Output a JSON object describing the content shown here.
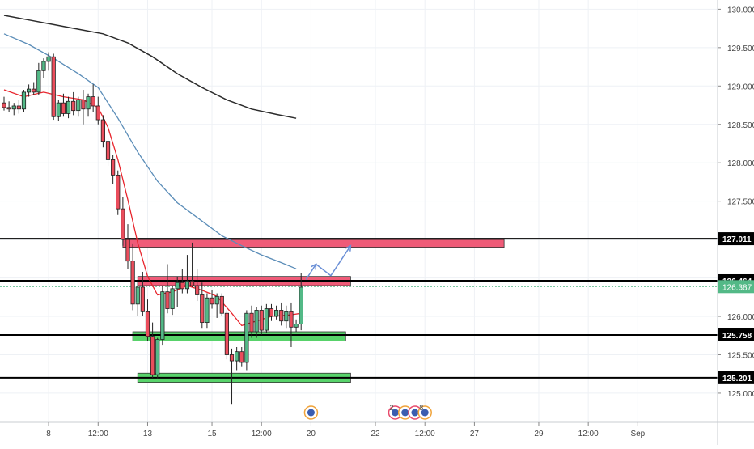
{
  "chart_data": {
    "type": "candlestick",
    "symbol_hint": "",
    "colors": {
      "up": "#53b987",
      "down": "#eb4d5c",
      "ema_fast": "#e8262e",
      "ema_mid": "#5b8db8",
      "ema_slow": "#2b2b2b",
      "resistance_zone": "#ef5b78",
      "support_zone": "#58d36b",
      "projection": "#6a8fd6",
      "level_line": "#000000",
      "last_price_bg": "#53b987",
      "grid": "#eef1f5"
    },
    "ylim": [
      124.62,
      130.12
    ],
    "y_ticks": [
      "130.000",
      "129.500",
      "129.000",
      "128.500",
      "128.000",
      "127.500",
      "127.000",
      "126.500",
      "126.000",
      "125.500",
      "125.000"
    ],
    "y_tick_values": [
      130.0,
      129.5,
      129.0,
      128.5,
      128.0,
      127.5,
      127.0,
      126.5,
      126.0,
      125.5,
      125.0
    ],
    "x_ticks": [
      "8",
      "12:00",
      "13",
      "15",
      "12:00",
      "20",
      "22",
      "12:00",
      "27",
      "29",
      "12:00",
      "Sep"
    ],
    "x_tick_index": [
      9,
      19,
      29,
      42,
      52,
      62,
      75,
      85,
      95,
      108,
      118,
      128
    ],
    "price_levels": [
      {
        "label": "127.011",
        "value": 127.011
      },
      {
        "label": "126.464",
        "value": 126.464
      },
      {
        "label": "125.758",
        "value": 125.758
      },
      {
        "label": "125.201",
        "value": 125.201
      }
    ],
    "last_price": {
      "label": "126.387",
      "value": 126.387
    },
    "zones": [
      {
        "kind": "resistance",
        "top": 127.0,
        "bottom": 126.9,
        "start": 24,
        "end": 101
      },
      {
        "kind": "resistance",
        "top": 126.52,
        "bottom": 126.4,
        "start": 27,
        "end": 70
      },
      {
        "kind": "support",
        "top": 125.8,
        "bottom": 125.68,
        "start": 26,
        "end": 69
      },
      {
        "kind": "support",
        "top": 125.26,
        "bottom": 125.14,
        "start": 27,
        "end": 70
      }
    ],
    "projection_path": [
      [
        61,
        126.48
      ],
      [
        63,
        126.68
      ],
      [
        66,
        126.53
      ],
      [
        70,
        126.92
      ]
    ],
    "candles": [
      [
        128.78,
        128.86,
        128.68,
        128.72
      ],
      [
        128.72,
        128.8,
        128.66,
        128.7
      ],
      [
        128.7,
        128.78,
        128.62,
        128.74
      ],
      [
        128.74,
        128.82,
        128.64,
        128.7
      ],
      [
        128.7,
        128.95,
        128.66,
        128.92
      ],
      [
        128.92,
        129.02,
        128.86,
        128.96
      ],
      [
        128.96,
        129.05,
        128.88,
        128.92
      ],
      [
        128.92,
        129.3,
        128.88,
        129.2
      ],
      [
        129.2,
        129.36,
        129.1,
        129.32
      ],
      [
        129.32,
        129.44,
        129.2,
        129.38
      ],
      [
        129.38,
        129.42,
        128.56,
        128.6
      ],
      [
        128.6,
        128.82,
        128.55,
        128.78
      ],
      [
        128.78,
        128.9,
        128.6,
        128.64
      ],
      [
        128.64,
        128.86,
        128.58,
        128.8
      ],
      [
        128.8,
        128.92,
        128.62,
        128.68
      ],
      [
        128.68,
        128.86,
        128.6,
        128.82
      ],
      [
        128.82,
        128.95,
        128.5,
        128.7
      ],
      [
        128.7,
        128.9,
        128.6,
        128.86
      ],
      [
        128.86,
        129.02,
        128.66,
        128.74
      ],
      [
        128.74,
        128.86,
        128.5,
        128.56
      ],
      [
        128.56,
        128.62,
        128.2,
        128.28
      ],
      [
        128.28,
        128.32,
        127.96,
        128.04
      ],
      [
        128.04,
        128.1,
        127.72,
        127.84
      ],
      [
        127.84,
        127.9,
        127.32,
        127.4
      ],
      [
        127.4,
        127.55,
        126.92,
        127.0
      ],
      [
        127.0,
        127.2,
        126.62,
        126.72
      ],
      [
        126.72,
        126.95,
        126.08,
        126.16
      ],
      [
        126.16,
        126.46,
        126.0,
        126.38
      ],
      [
        126.38,
        126.58,
        126.0,
        126.06
      ],
      [
        126.06,
        126.22,
        125.68,
        125.74
      ],
      [
        125.74,
        125.92,
        125.2,
        125.24
      ],
      [
        125.24,
        125.72,
        125.18,
        125.7
      ],
      [
        125.7,
        126.4,
        125.62,
        126.32
      ],
      [
        126.32,
        126.68,
        126.04,
        126.1
      ],
      [
        126.1,
        126.4,
        126.02,
        126.36
      ],
      [
        126.36,
        126.52,
        126.12,
        126.44
      ],
      [
        126.44,
        126.62,
        126.3,
        126.36
      ],
      [
        126.36,
        126.8,
        126.3,
        126.46
      ],
      [
        126.46,
        126.96,
        126.38,
        126.4
      ],
      [
        126.4,
        126.62,
        126.2,
        126.28
      ],
      [
        126.28,
        126.44,
        125.84,
        125.92
      ],
      [
        125.92,
        126.3,
        125.84,
        126.24
      ],
      [
        126.24,
        126.34,
        126.1,
        126.16
      ],
      [
        126.16,
        126.3,
        125.98,
        126.26
      ],
      [
        126.26,
        126.3,
        126.0,
        126.04
      ],
      [
        126.04,
        126.08,
        125.44,
        125.5
      ],
      [
        125.5,
        125.58,
        124.86,
        125.42
      ],
      [
        125.42,
        125.6,
        125.3,
        125.54
      ],
      [
        125.54,
        125.6,
        125.34,
        125.4
      ],
      [
        125.4,
        126.08,
        125.3,
        126.04
      ],
      [
        126.04,
        126.14,
        125.72,
        125.8
      ],
      [
        125.8,
        126.12,
        125.72,
        126.08
      ],
      [
        126.08,
        126.14,
        125.76,
        125.82
      ],
      [
        125.82,
        126.16,
        125.78,
        126.1
      ],
      [
        126.1,
        126.16,
        125.94,
        126.0
      ],
      [
        126.0,
        126.14,
        125.96,
        126.08
      ],
      [
        126.08,
        126.18,
        125.88,
        125.94
      ],
      [
        125.94,
        126.14,
        125.84,
        126.06
      ],
      [
        126.06,
        126.18,
        125.6,
        125.86
      ],
      [
        125.86,
        125.96,
        125.8,
        125.9
      ],
      [
        125.9,
        126.56,
        125.82,
        126.38
      ]
    ],
    "ema_fast": [
      [
        0,
        128.95
      ],
      [
        4,
        128.86
      ],
      [
        8,
        128.92
      ],
      [
        12,
        128.86
      ],
      [
        16,
        128.82
      ],
      [
        19,
        128.72
      ],
      [
        21,
        128.46
      ],
      [
        23,
        128.04
      ],
      [
        25,
        127.52
      ],
      [
        27,
        126.96
      ],
      [
        29,
        126.52
      ],
      [
        31,
        126.28
      ],
      [
        34,
        126.32
      ],
      [
        37,
        126.4
      ],
      [
        40,
        126.34
      ],
      [
        43,
        126.26
      ],
      [
        46,
        126.04
      ],
      [
        48,
        125.88
      ],
      [
        50,
        125.92
      ],
      [
        54,
        126.0
      ],
      [
        58,
        126.02
      ],
      [
        60,
        126.04
      ]
    ],
    "ema_mid": [
      [
        0,
        129.68
      ],
      [
        5,
        129.54
      ],
      [
        10,
        129.36
      ],
      [
        15,
        129.16
      ],
      [
        19,
        128.98
      ],
      [
        23,
        128.58
      ],
      [
        27,
        128.14
      ],
      [
        31,
        127.76
      ],
      [
        35,
        127.48
      ],
      [
        40,
        127.24
      ],
      [
        44,
        127.05
      ],
      [
        48,
        126.92
      ],
      [
        52,
        126.8
      ],
      [
        56,
        126.7
      ],
      [
        59,
        126.62
      ]
    ],
    "ema_slow": [
      [
        0,
        129.92
      ],
      [
        5,
        129.86
      ],
      [
        10,
        129.8
      ],
      [
        15,
        129.74
      ],
      [
        20,
        129.68
      ],
      [
        25,
        129.56
      ],
      [
        30,
        129.38
      ],
      [
        35,
        129.16
      ],
      [
        40,
        128.98
      ],
      [
        45,
        128.82
      ],
      [
        50,
        128.7
      ],
      [
        55,
        128.63
      ],
      [
        59,
        128.58
      ]
    ],
    "event_markers": [
      {
        "index": 62,
        "label": ""
      },
      {
        "index": 79,
        "label": "2"
      },
      {
        "index": 81,
        "label": ""
      },
      {
        "index": 83,
        "label": ""
      },
      {
        "index": 85,
        "label": "8"
      }
    ]
  }
}
